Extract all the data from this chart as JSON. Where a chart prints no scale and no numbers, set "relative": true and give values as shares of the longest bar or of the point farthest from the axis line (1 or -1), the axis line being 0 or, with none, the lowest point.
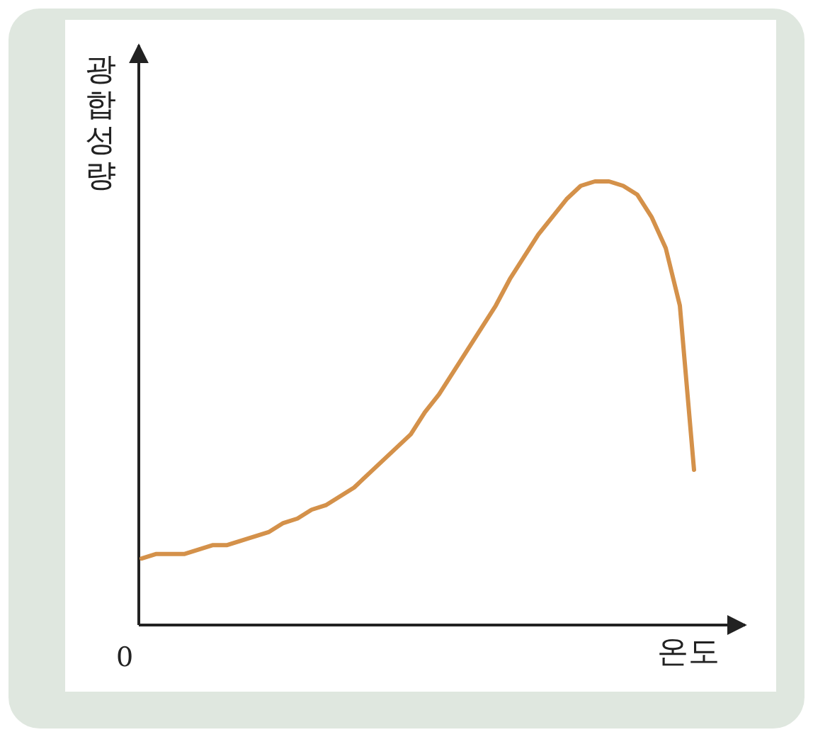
{
  "chart_data": {
    "type": "line",
    "relative": true,
    "xlabel": "온도",
    "ylabel": "광합성량",
    "annotations": [
      "0"
    ],
    "categories": [
      null,
      null,
      null,
      null,
      null,
      null,
      null,
      null,
      null,
      null,
      null,
      null,
      null,
      null,
      null,
      null,
      null,
      null,
      null,
      null,
      null,
      null,
      null,
      null,
      null,
      null,
      null,
      null,
      null,
      null,
      null,
      null,
      null,
      null,
      null,
      null,
      null,
      null,
      null,
      null
    ],
    "series": [
      {
        "color": "#d4914a",
        "values": [
          0.15,
          0.16,
          0.16,
          0.16,
          0.17,
          0.18,
          0.18,
          0.19,
          0.2,
          0.21,
          0.23,
          0.24,
          0.26,
          0.27,
          0.29,
          0.31,
          0.34,
          0.37,
          0.4,
          0.43,
          0.48,
          0.52,
          0.57,
          0.62,
          0.67,
          0.72,
          0.78,
          0.83,
          0.88,
          0.92,
          0.96,
          0.99,
          1,
          1,
          0.99,
          0.97,
          0.92,
          0.85,
          0.72,
          0.35
        ]
      }
    ]
  }
}
